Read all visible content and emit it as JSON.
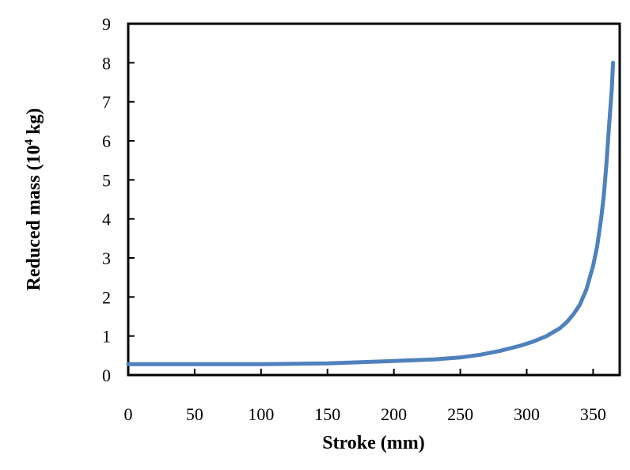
{
  "chart_data": {
    "type": "line",
    "title": "",
    "xlabel": "Stroke (mm)",
    "ylabel": {
      "prefix": "Reduced mass (10",
      "superscript": "4",
      "suffix": " kg)"
    },
    "xlim": [
      0,
      370
    ],
    "ylim": [
      0,
      9
    ],
    "xticks": [
      0,
      50,
      100,
      150,
      200,
      250,
      300,
      350
    ],
    "yticks": [
      0,
      1,
      2,
      3,
      4,
      5,
      6,
      7,
      8,
      9
    ],
    "grid": false,
    "legend": "none",
    "series": [
      {
        "color": "#4f81bd",
        "x": [
          0,
          50,
          100,
          150,
          200,
          230,
          250,
          265,
          280,
          295,
          305,
          315,
          325,
          330,
          335,
          340,
          345,
          350,
          353,
          356,
          358,
          360,
          362,
          364,
          365
        ],
        "y": [
          0.28,
          0.28,
          0.28,
          0.3,
          0.36,
          0.4,
          0.45,
          0.52,
          0.62,
          0.75,
          0.86,
          1.0,
          1.2,
          1.35,
          1.55,
          1.8,
          2.2,
          2.8,
          3.3,
          4.0,
          4.6,
          5.4,
          6.4,
          7.3,
          8.0
        ]
      }
    ]
  }
}
